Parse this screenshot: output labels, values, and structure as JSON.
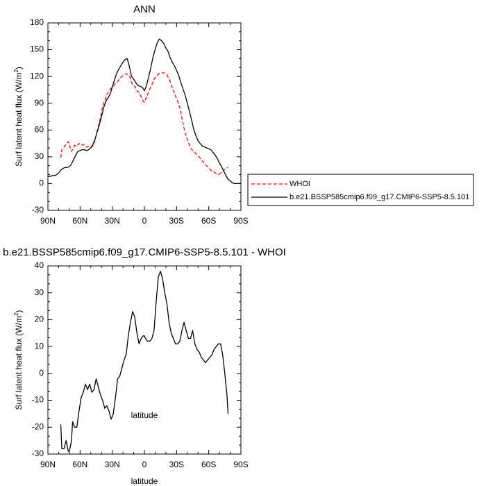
{
  "chart_data": [
    {
      "type": "line",
      "title": "ANN",
      "xlabel": "latitude",
      "ylabel": "Surf latent heat flux (W/m",
      "ylabel_sup": "2",
      "ylabel_close": ")",
      "xlim": [
        90,
        -90
      ],
      "ylim": [
        -30,
        180
      ],
      "xticks": [
        90,
        60,
        30,
        0,
        -30,
        -60,
        -90
      ],
      "xtick_labels": [
        "90N",
        "60N",
        "30N",
        "0",
        "30S",
        "60S",
        "90S"
      ],
      "yticks": [
        -30,
        0,
        30,
        60,
        90,
        120,
        150,
        180
      ],
      "ytick_labels": [
        "-30",
        "0",
        "30",
        "60",
        "90",
        "120",
        "150",
        "180"
      ],
      "legend_position": "right",
      "series": [
        {
          "name": "WHOI",
          "color": "#ff0000",
          "dash": "dashed",
          "x": [
            78,
            77,
            75,
            73,
            71,
            70,
            68,
            67,
            65,
            63,
            61,
            59,
            57,
            55,
            53,
            51,
            49,
            47,
            45,
            43,
            41,
            39,
            37,
            35,
            33,
            31,
            29,
            27,
            25,
            23,
            21,
            19,
            17,
            15,
            13,
            11,
            9,
            7,
            5,
            3,
            1,
            0,
            -1,
            -3,
            -5,
            -7,
            -9,
            -11,
            -13,
            -15,
            -17,
            -19,
            -21,
            -23,
            -25,
            -27,
            -29,
            -31,
            -33,
            -35,
            -37,
            -39,
            -41,
            -43,
            -45,
            -47,
            -49,
            -51,
            -53,
            -55,
            -57,
            -59,
            -61,
            -63,
            -65,
            -67,
            -69,
            -71,
            -73,
            -75,
            -77,
            -78
          ],
          "y": [
            29,
            38,
            41,
            44,
            47,
            43,
            36,
            38,
            43,
            42,
            45,
            43,
            44,
            41,
            41,
            42,
            41,
            45,
            54,
            64,
            74,
            87,
            93,
            100,
            104,
            107,
            109,
            112,
            114,
            118,
            120,
            122,
            123,
            122,
            118,
            110,
            109,
            104,
            102,
            97,
            92,
            91,
            94,
            100,
            106,
            111,
            117,
            120,
            123,
            124,
            124,
            124,
            122,
            117,
            111,
            104,
            98,
            92,
            85,
            73,
            62,
            53,
            46,
            40,
            37,
            35,
            32,
            30,
            27,
            24,
            21,
            19,
            16,
            14,
            13,
            11,
            10,
            12,
            14,
            16,
            18,
            18
          ]
        },
        {
          "name": "b.e21.BSSP585cmip6.f09_g17.CMIP6-SSP5-8.5.101",
          "color": "#000000",
          "dash": "solid",
          "x": [
            90,
            88,
            86,
            84,
            82,
            80,
            78,
            76,
            74,
            72,
            70,
            68,
            66,
            64,
            62,
            60,
            58,
            56,
            54,
            52,
            50,
            48,
            46,
            44,
            42,
            40,
            38,
            36,
            34,
            32,
            30,
            28,
            26,
            24,
            22,
            20,
            18,
            16,
            14,
            12,
            10,
            8,
            6,
            4,
            2,
            0,
            -2,
            -4,
            -6,
            -8,
            -10,
            -12,
            -14,
            -16,
            -18,
            -20,
            -22,
            -24,
            -26,
            -28,
            -30,
            -32,
            -34,
            -36,
            -38,
            -40,
            -42,
            -44,
            -46,
            -48,
            -50,
            -52,
            -54,
            -56,
            -58,
            -60,
            -62,
            -64,
            -66,
            -68,
            -70,
            -72,
            -74,
            -76,
            -78,
            -80,
            -82,
            -84,
            -86,
            -88,
            -90
          ],
          "y": [
            8,
            8,
            9,
            9,
            10,
            12,
            15,
            17,
            18,
            18,
            19,
            22,
            27,
            32,
            36,
            37,
            38,
            38,
            37,
            38,
            40,
            44,
            50,
            58,
            66,
            75,
            85,
            92,
            96,
            100,
            108,
            116,
            123,
            128,
            132,
            136,
            139,
            140,
            131,
            120,
            117,
            113,
            110,
            109,
            108,
            104,
            110,
            120,
            130,
            142,
            150,
            158,
            162,
            160,
            157,
            152,
            148,
            141,
            136,
            132,
            127,
            121,
            113,
            106,
            99,
            90,
            81,
            71,
            61,
            54,
            48,
            45,
            42,
            41,
            40,
            39,
            38,
            35,
            32,
            28,
            23,
            19,
            14,
            9,
            5,
            3,
            1,
            0,
            0,
            0,
            0
          ]
        }
      ]
    },
    {
      "type": "line",
      "title": "b.e21.BSSP585cmip6.f09_g17.CMIP6-SSP5-8.5.101 - WHOI",
      "xlabel": "latitude",
      "ylabel": "Surf latent heat flux (W/m",
      "ylabel_sup": "2",
      "ylabel_close": ")",
      "xlim": [
        90,
        -90
      ],
      "ylim": [
        -30,
        40
      ],
      "xticks": [
        90,
        60,
        30,
        0,
        -30,
        -60,
        -90
      ],
      "xtick_labels": [
        "90N",
        "60N",
        "30N",
        "0",
        "30S",
        "60S",
        "90S"
      ],
      "yticks": [
        -30,
        -20,
        -10,
        0,
        10,
        20,
        30,
        40
      ],
      "ytick_labels": [
        "-30",
        "-20",
        "-10",
        "0",
        "10",
        "20",
        "30",
        "40"
      ],
      "series": [
        {
          "color": "#000000",
          "dash": "solid",
          "x": [
            78,
            77,
            75,
            73,
            71,
            70,
            68,
            67,
            65,
            63,
            61,
            59,
            57,
            55,
            53,
            51,
            49,
            47,
            45,
            43,
            41,
            39,
            37,
            35,
            33,
            31,
            29,
            27,
            25,
            23,
            21,
            19,
            17,
            15,
            13,
            11,
            9,
            7,
            5,
            3,
            1,
            0,
            -1,
            -3,
            -5,
            -7,
            -9,
            -11,
            -13,
            -15,
            -17,
            -19,
            -21,
            -23,
            -25,
            -27,
            -29,
            -31,
            -33,
            -35,
            -37,
            -39,
            -41,
            -43,
            -45,
            -47,
            -49,
            -51,
            -53,
            -55,
            -57,
            -59,
            -61,
            -63,
            -65,
            -67,
            -69,
            -71,
            -73,
            -75,
            -77,
            -78
          ],
          "y": [
            -19,
            -28,
            -28,
            -25,
            -29,
            -29,
            -25,
            -18,
            -20,
            -20,
            -14,
            -9,
            -7,
            -4,
            -6,
            -4,
            -7,
            -6,
            -2,
            -5,
            -8,
            -10,
            -13,
            -12,
            -14,
            -17,
            -15,
            -9,
            -2,
            -1,
            2,
            5,
            7,
            14,
            19,
            23,
            21,
            15,
            11,
            13,
            14,
            14,
            13,
            12,
            12,
            13,
            16,
            27,
            36,
            38,
            35,
            30,
            26,
            19,
            15,
            13,
            11,
            11,
            12,
            16,
            19,
            16,
            13,
            13,
            16,
            11,
            9,
            8,
            6,
            5,
            4,
            5,
            6,
            7,
            9,
            10,
            11,
            11,
            7,
            0,
            -8,
            -15
          ]
        }
      ]
    }
  ]
}
